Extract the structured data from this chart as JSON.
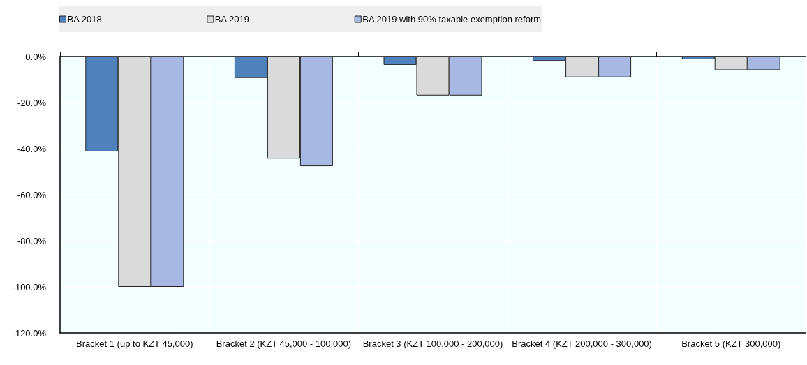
{
  "chart_data": {
    "type": "bar",
    "categories": [
      "Bracket 1 (up to KZT 45,000)",
      "Bracket 2 (KZT 45,000 - 100,000)",
      "Bracket 3 (KZT 100,000 - 200,000)",
      "Bracket 4 (KZT 200,000 - 300,000)",
      "Bracket 5 (KZT 300,000)"
    ],
    "series": [
      {
        "name": "BA 2018",
        "color": "#4f81bd",
        "values": [
          -41.2,
          -9.3,
          -3.6,
          -1.9,
          -1.2
        ]
      },
      {
        "name": "BA 2019",
        "color": "#dadada",
        "values": [
          -100,
          -44.3,
          -16.9,
          -9.0,
          -5.9
        ]
      },
      {
        "name": "BA 2019 with 90% taxable exemption reform",
        "color": "#a7b8e2",
        "values": [
          -100,
          -47.6,
          -16.9,
          -9.0,
          -5.9
        ]
      }
    ],
    "ylim": [
      -120,
      0
    ],
    "yticks": [
      {
        "value": -120,
        "label": "-120.0%"
      },
      {
        "value": -100,
        "label": "-100.0%"
      },
      {
        "value": -80,
        "label": "-80.0%"
      },
      {
        "value": -60,
        "label": "-60.0%"
      },
      {
        "value": -40,
        "label": "-40.0%"
      },
      {
        "value": -20,
        "label": "-20.0%"
      },
      {
        "value": 0,
        "label": "0.0%"
      }
    ],
    "grid": true,
    "legend": "top"
  }
}
